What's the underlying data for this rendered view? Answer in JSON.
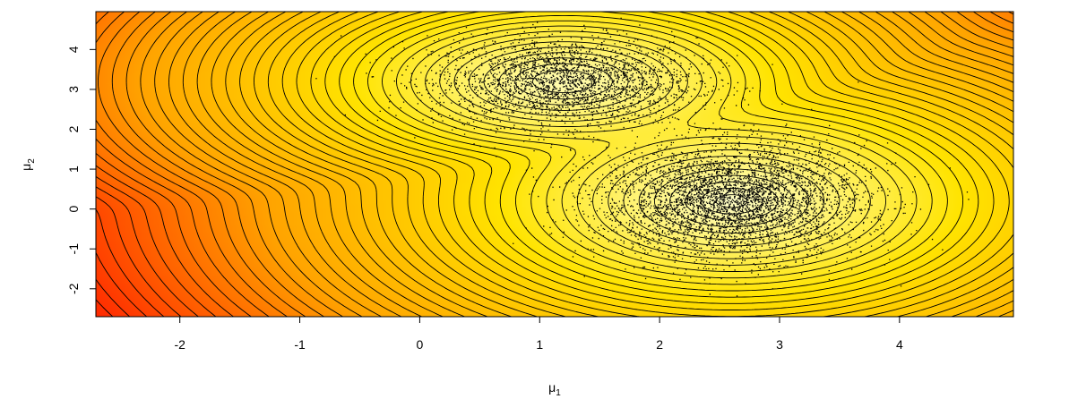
{
  "chart_data": {
    "type": "contour",
    "title": "",
    "xlabel": "μ",
    "xlabel_sub": "1",
    "ylabel": "μ",
    "ylabel_sub": "2",
    "xlim": [
      -2.7,
      4.95
    ],
    "ylim": [
      -2.7,
      4.95
    ],
    "x_ticks": [
      -2,
      -1,
      0,
      1,
      2,
      3,
      4
    ],
    "y_ticks": [
      -2,
      -1,
      0,
      1,
      2,
      3,
      4
    ],
    "colormap": [
      "#ff2a00",
      "#ffa400",
      "#ffe400",
      "#ffffc8"
    ],
    "surface": {
      "description_free": true,
      "modes": [
        {
          "mu1": 1.2,
          "mu2": 3.2,
          "sd1": 0.55,
          "sd2": 0.6,
          "weight": 0.4
        },
        {
          "mu1": 2.6,
          "mu2": 0.2,
          "sd1": 0.6,
          "sd2": 0.75,
          "weight": 0.6
        }
      ]
    },
    "samples": {
      "count": 7000,
      "clusters": [
        {
          "mu1": 1.2,
          "mu2": 3.2,
          "sd1": 0.55,
          "sd2": 0.55,
          "share": 0.38
        },
        {
          "mu1": 2.6,
          "mu2": 0.2,
          "sd1": 0.55,
          "sd2": 0.7,
          "share": 0.62
        }
      ]
    }
  }
}
